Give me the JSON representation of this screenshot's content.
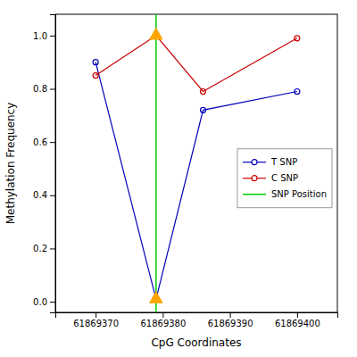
{
  "chart_data": {
    "type": "line",
    "xlabel": "CpG Coordinates",
    "ylabel": "Methylation Frequency",
    "x": [
      61869370,
      61869379,
      61869386,
      61869400
    ],
    "series": [
      {
        "name": "T SNP",
        "color": "#0000bb",
        "marker": "circle",
        "values": [
          0.9,
          0.01,
          0.72,
          0.79
        ]
      },
      {
        "name": "C SNP",
        "color": "#cc0000",
        "marker": "circle",
        "values": [
          0.85,
          1.0,
          0.79,
          0.99
        ]
      },
      {
        "name": "SNP Position",
        "type": "vline",
        "color": "#00cc00",
        "x": [
          61869379
        ]
      },
      {
        "type": "scatter",
        "marker": "triangle",
        "color": "#FFA500",
        "x": [
          61869379,
          61869379
        ],
        "values": [
          1.0,
          0.01
        ]
      }
    ],
    "xlim": [
      61869364,
      61869406
    ],
    "ylim": [
      -0.04,
      1.08
    ],
    "xticks": [
      61869370,
      61869380,
      61869390,
      61869400
    ],
    "yticks": [
      {
        "value": 0.0,
        "label": "0.0"
      },
      0.2,
      0.4,
      0.6,
      0.8,
      {
        "value": 1.0,
        "label": "1.0"
      }
    ],
    "grid": false,
    "legend": "right"
  }
}
